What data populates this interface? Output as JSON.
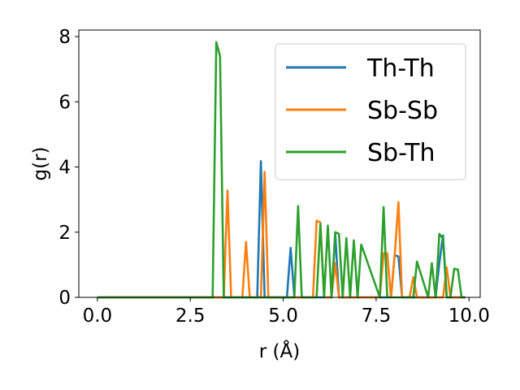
{
  "chart_data": {
    "type": "line",
    "xlabel": "r (Å)",
    "ylabel": "g(r)",
    "xlim": [
      -0.5,
      10.3
    ],
    "ylim": [
      0,
      8.2
    ],
    "xticks": [
      0.0,
      2.5,
      5.0,
      7.5,
      10.0
    ],
    "xtick_labels": [
      "0.0",
      "2.5",
      "5.0",
      "7.5",
      "10.0"
    ],
    "yticks": [
      0,
      2,
      4,
      6,
      8
    ],
    "ytick_labels": [
      "0",
      "2",
      "4",
      "6",
      "8"
    ],
    "grid": false,
    "legend_position": "top-right",
    "series": [
      {
        "name": "Th-Th",
        "color": "#1f77b4",
        "x": [
          0,
          4.3,
          4.4,
          4.5,
          5.1,
          5.2,
          5.3,
          6.3,
          6.4,
          6.5,
          7.9,
          8.0,
          8.1,
          8.2,
          9.1,
          9.2,
          9.3,
          9.4,
          9.9
        ],
        "y": [
          0,
          0,
          4.18,
          0,
          0,
          1.52,
          0,
          0,
          1.95,
          0,
          0,
          1.3,
          1.25,
          0,
          0,
          1.05,
          1.9,
          0,
          0
        ]
      },
      {
        "name": "Sb-Sb",
        "color": "#ff7f0e",
        "x": [
          0,
          3.4,
          3.5,
          3.6,
          3.9,
          4.0,
          4.1,
          4.4,
          4.5,
          4.6,
          5.8,
          5.9,
          6.0,
          6.1,
          6.3,
          6.4,
          6.5,
          7.6,
          7.7,
          7.8,
          7.9,
          8.0,
          8.1,
          8.2,
          8.4,
          8.5,
          8.6,
          9.3,
          9.4,
          9.5,
          9.9
        ],
        "y": [
          0,
          0,
          3.28,
          0,
          0,
          1.7,
          0,
          0,
          3.85,
          0,
          0,
          2.35,
          2.3,
          0,
          0,
          1.05,
          0,
          0,
          1.35,
          1.35,
          0,
          1.3,
          2.92,
          0,
          0,
          0.62,
          0,
          0,
          0.92,
          0,
          0
        ]
      },
      {
        "name": "Sb-Th",
        "color": "#2ca02c",
        "x": [
          0,
          3.1,
          3.2,
          3.3,
          3.4,
          5.2,
          5.3,
          5.4,
          5.5,
          5.9,
          6.0,
          6.1,
          6.2,
          6.3,
          6.4,
          6.5,
          6.6,
          6.7,
          6.8,
          6.9,
          7.0,
          7.1,
          7.6,
          7.7,
          7.8,
          7.9,
          8.5,
          8.6,
          8.9,
          9.0,
          9.1,
          9.2,
          9.3,
          9.4,
          9.5,
          9.6,
          9.7,
          9.8,
          9.9
        ],
        "y": [
          0,
          0,
          7.83,
          7.4,
          0,
          0,
          0,
          2.8,
          0,
          0,
          2.25,
          0,
          2.2,
          0,
          2.0,
          1.95,
          0,
          1.82,
          0,
          1.75,
          0,
          1.62,
          0,
          2.77,
          0,
          0,
          0,
          1.1,
          0,
          1.05,
          0,
          1.95,
          1.8,
          0,
          0,
          0.88,
          0.85,
          0,
          0
        ]
      }
    ]
  }
}
